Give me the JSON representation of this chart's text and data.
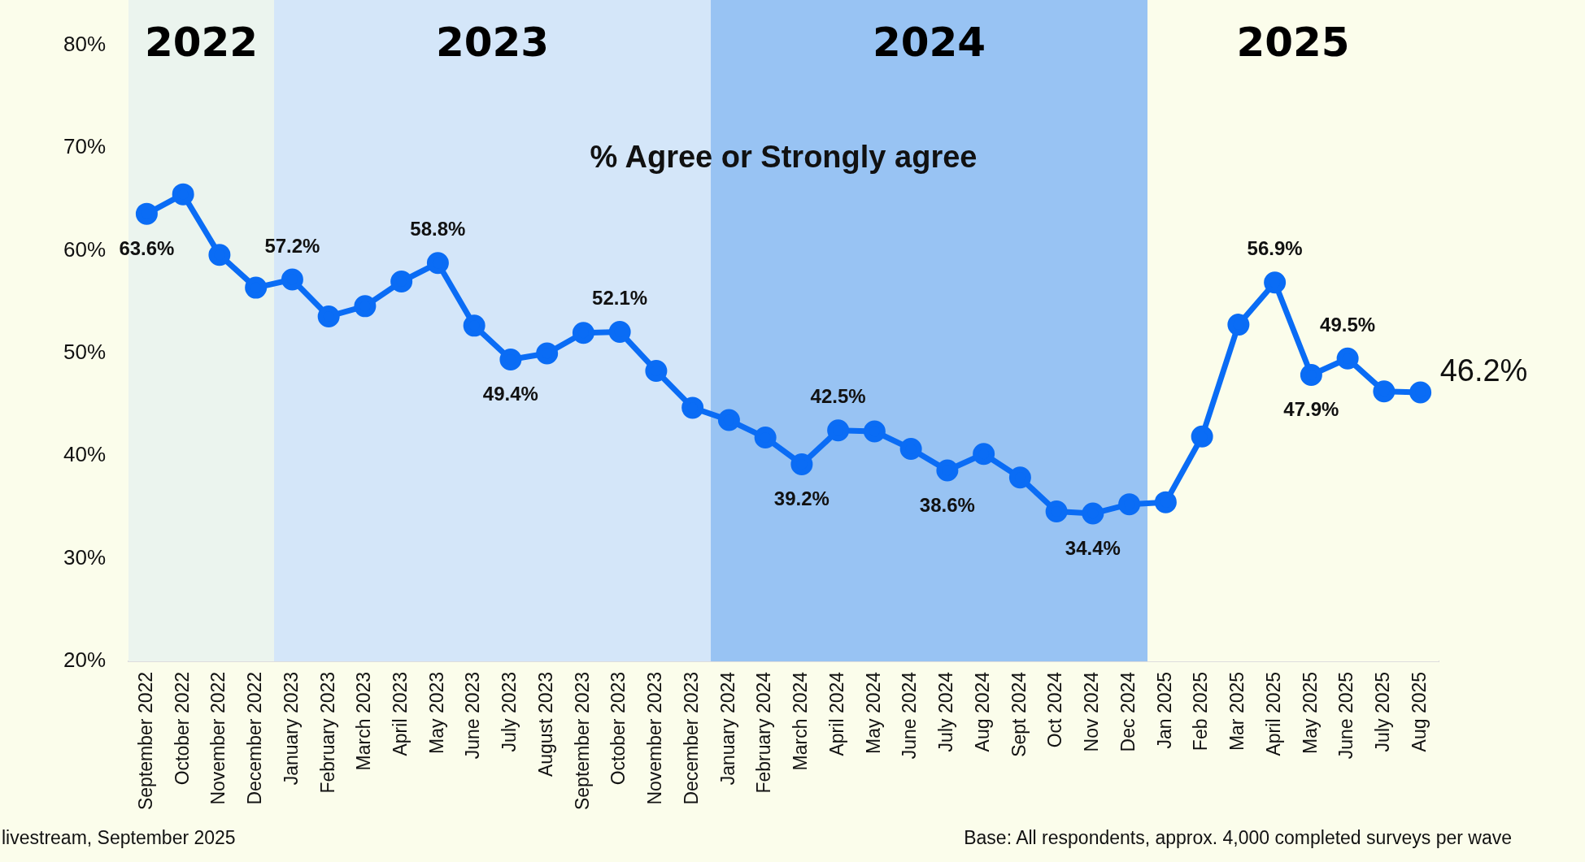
{
  "chart_data": {
    "type": "line",
    "title": "% Agree or Strongly agree",
    "categories": [
      "September 2022",
      "October 2022",
      "November 2022",
      "December 2022",
      "January 2023",
      "February 2023",
      "March 2023",
      "April 2023",
      "May 2023",
      "June 2023",
      "July 2023",
      "August 2023",
      "September 2023",
      "October 2023",
      "November 2023",
      "December 2023",
      "January 2024",
      "February 2024",
      "March 2024",
      "April 2024",
      "May 2024",
      "June 2024",
      "July 2024",
      "Aug 2024",
      "Sept 2024",
      "Oct 2024",
      "Nov 2024",
      "Dec 2024",
      "Jan 2025",
      "Feb 2025",
      "Mar 2025",
      "April 2025",
      "May 2025",
      "June 2025",
      "July 2025",
      "Aug 2025"
    ],
    "series": [
      {
        "color": "#0a6cf5",
        "values": [
          63.6,
          65.5,
          59.6,
          56.4,
          57.2,
          53.6,
          54.6,
          57.0,
          58.8,
          52.7,
          49.4,
          50.0,
          52.0,
          52.1,
          48.3,
          44.7,
          43.5,
          41.8,
          39.2,
          42.5,
          42.4,
          40.7,
          38.6,
          40.2,
          37.9,
          34.6,
          34.4,
          35.3,
          35.5,
          41.9,
          52.8,
          56.9,
          47.9,
          49.5,
          46.3,
          46.2
        ],
        "value_labels": [
          "63.6%",
          null,
          null,
          null,
          "57.2%",
          null,
          null,
          null,
          "58.8%",
          null,
          "49.4%",
          null,
          null,
          "52.1%",
          null,
          null,
          null,
          null,
          "39.2%",
          "42.5%",
          null,
          null,
          "38.6%",
          null,
          null,
          null,
          "34.4%",
          null,
          null,
          null,
          null,
          "56.9%",
          "47.9%",
          "49.5%",
          null,
          "46.2%"
        ]
      }
    ],
    "ylim": [
      20,
      80
    ],
    "yticks": [
      {
        "value": 20,
        "label": "20%"
      },
      {
        "value": 30,
        "label": "30%"
      },
      {
        "value": 40,
        "label": "40%"
      },
      {
        "value": 50,
        "label": "50%"
      },
      {
        "value": 60,
        "label": "60%"
      },
      {
        "value": 70,
        "label": "70%"
      },
      {
        "value": 80,
        "label": "80%"
      }
    ],
    "bands": [
      {
        "axis": "x",
        "from": "September 2022",
        "to": "December 2022",
        "label": "2022",
        "color": "#ebf4ee"
      },
      {
        "axis": "x",
        "from": "January 2023",
        "to": "December 2023",
        "label": "2023",
        "color": "#d4e6f9"
      },
      {
        "axis": "x",
        "from": "January 2024",
        "to": "Dec 2024",
        "label": "2024",
        "color": "#98c3f3"
      },
      {
        "axis": "x",
        "from": "Jan 2025",
        "to": "Aug 2025",
        "label": "2025",
        "color": "#fbfdeb"
      }
    ],
    "grid": false,
    "legend": false,
    "marker": "circle",
    "line_style": "solid",
    "annotations": [
      "livestream, September 2025",
      "Base: All respondents, approx. 4,000 completed surveys per wave"
    ]
  }
}
